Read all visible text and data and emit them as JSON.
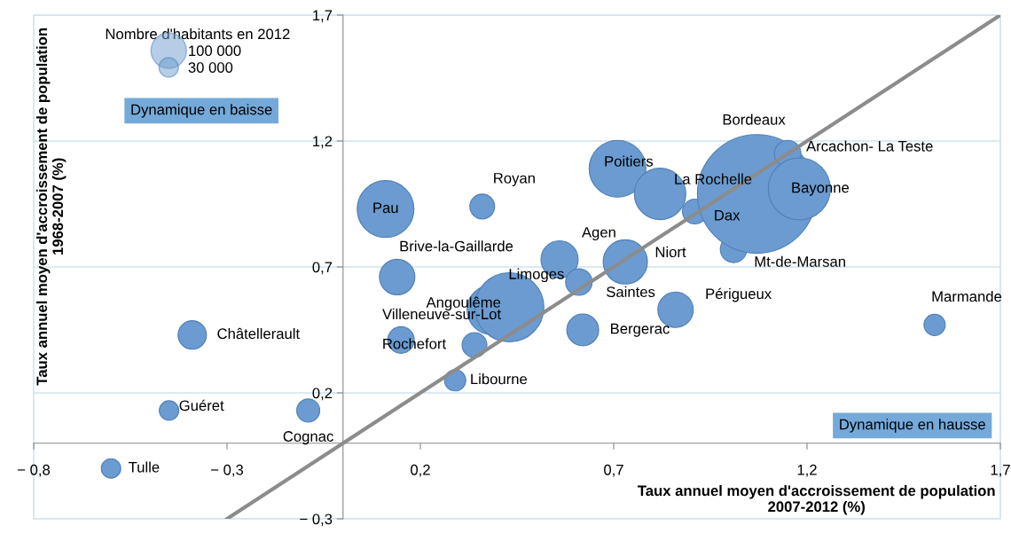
{
  "chart_data": {
    "type": "bubble",
    "xlabel": "Taux annuel moyen d'accroissement de population\n2007-2012 (%)",
    "ylabel": "Taux annuel moyen d'accroissement de population\n1968-2007 (%)",
    "legend_title": "Nombre d'habitants en 2012",
    "grid": "y",
    "xlim": [
      -0.8,
      1.7
    ],
    "ylim": [
      -0.3,
      1.7
    ],
    "xticks": [
      {
        "value": -0.8,
        "label": "− 0,8"
      },
      {
        "value": -0.3,
        "label": "− 0,3"
      },
      {
        "value": 0.2,
        "label": "0,2"
      },
      {
        "value": 0.7,
        "label": "0,7"
      },
      {
        "value": 1.2,
        "label": "1,2"
      },
      {
        "value": 1.7,
        "label": "1,7"
      }
    ],
    "yticks": [
      {
        "value": -0.3,
        "label": "− 0,3"
      },
      {
        "value": 0.2,
        "label": "0,2"
      },
      {
        "value": 0.7,
        "label": "0,7"
      },
      {
        "value": 1.2,
        "label": "1,2"
      },
      {
        "value": 1.7,
        "label": "1,7"
      }
    ],
    "size_legend": [
      {
        "value": 100000,
        "label": "100 000"
      },
      {
        "value": 30000,
        "label": "30 000"
      }
    ],
    "series": [
      {
        "type": "line",
        "color": "#8c8c8c",
        "x": [
          -0.3,
          1.7
        ],
        "values": [
          -0.3,
          1.7
        ]
      },
      {
        "color": "#6b9bd0",
        "x": [
          -0.6,
          -0.45,
          -0.39,
          -0.09,
          0.11,
          0.36,
          0.14,
          0.15,
          0.34,
          0.29,
          0.385,
          0.43,
          0.56,
          0.61,
          0.62,
          0.73,
          0.71,
          0.82,
          0.91,
          1.01,
          1.07,
          1.15,
          1.18,
          0.86,
          1.53
        ],
        "values": [
          -0.1,
          0.13,
          0.43,
          0.13,
          0.93,
          0.94,
          0.66,
          0.41,
          0.39,
          0.25,
          0.53,
          0.54,
          0.73,
          0.64,
          0.45,
          0.72,
          1.09,
          0.99,
          0.92,
          0.77,
          0.99,
          1.15,
          1.01,
          0.53,
          0.47
        ],
        "sizes": [
          30000,
          30000,
          64000,
          42000,
          256000,
          49000,
          100000,
          56000,
          49000,
          36000,
          196000,
          380000,
          110000,
          56000,
          81000,
          156000,
          256000,
          210000,
          49000,
          56000,
          1120000,
          56000,
          306000,
          100000,
          36000
        ]
      }
    ],
    "annotations": [
      {
        "text": "Tulle",
        "x": -0.6,
        "y": -0.1
      },
      {
        "text": "Guéret",
        "x": -0.45,
        "y": 0.13
      },
      {
        "text": "Châtellerault",
        "x": -0.39,
        "y": 0.43
      },
      {
        "text": "Cognac",
        "x": -0.09,
        "y": 0.13
      },
      {
        "text": "Pau",
        "x": 0.11,
        "y": 0.93
      },
      {
        "text": "Royan",
        "x": 0.36,
        "y": 0.94
      },
      {
        "text": "Brive-la-Gaillarde",
        "x": 0.14,
        "y": 0.66
      },
      {
        "text": "Villeneuve-sur-Lot",
        "x": 0.15,
        "y": 0.41
      },
      {
        "text": "Rochefort",
        "x": 0.34,
        "y": 0.39
      },
      {
        "text": "Libourne",
        "x": 0.29,
        "y": 0.25
      },
      {
        "text": "Angoulême",
        "x": 0.385,
        "y": 0.53
      },
      {
        "text": "Limoges",
        "x": 0.43,
        "y": 0.54
      },
      {
        "text": "Agen",
        "x": 0.56,
        "y": 0.73
      },
      {
        "text": "Saintes",
        "x": 0.61,
        "y": 0.64
      },
      {
        "text": "Bergerac",
        "x": 0.62,
        "y": 0.45
      },
      {
        "text": "Niort",
        "x": 0.73,
        "y": 0.72
      },
      {
        "text": "Poitiers",
        "x": 0.71,
        "y": 1.09
      },
      {
        "text": "La Rochelle",
        "x": 0.82,
        "y": 0.99
      },
      {
        "text": "Dax",
        "x": 0.91,
        "y": 0.92
      },
      {
        "text": "Mt-de-Marsan",
        "x": 1.01,
        "y": 0.77
      },
      {
        "text": "Arcachon- La Teste",
        "x": 1.15,
        "y": 1.15
      },
      {
        "text": "Bayonne",
        "x": 1.18,
        "y": 1.01
      },
      {
        "text": "Périgueux",
        "x": 0.86,
        "y": 0.53
      },
      {
        "text": "Marmande",
        "x": 1.53,
        "y": 0.47
      },
      "Bordeaux",
      "Dynamique en baisse",
      "Dynamique en hausse"
    ]
  }
}
